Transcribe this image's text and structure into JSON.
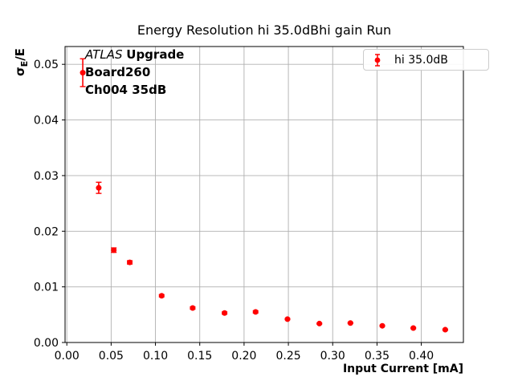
{
  "chart_data": {
    "type": "scatter",
    "title": "Energy Resolution hi 35.0dBhi gain Run",
    "xlabel": "Input Current [mA]",
    "ylabel": "σE/E",
    "ylabel_parts": {
      "sigma": "σ",
      "sub": "E",
      "rest": "/E"
    },
    "xlim": [
      -0.002,
      0.4475
    ],
    "ylim": [
      0,
      0.0532
    ],
    "grid": true,
    "legend": {
      "position": "upper right",
      "entries": [
        {
          "label": "hi 35.0dB",
          "color": "#ff0000",
          "marker": "errorbar-point"
        }
      ]
    },
    "annotation": {
      "experiment": "ATLAS",
      "tag": "Upgrade",
      "board": "Board260",
      "channel": "Ch004 35dB"
    },
    "colors": {
      "marker": "#ff0000",
      "grid": "#b0b0b0",
      "spine": "#000000",
      "legend_border": "#cccccc",
      "text": "#000000"
    },
    "x_ticks": [
      {
        "v": 0.0,
        "label": "0.00"
      },
      {
        "v": 0.05,
        "label": "0.05"
      },
      {
        "v": 0.1,
        "label": "0.10"
      },
      {
        "v": 0.15,
        "label": "0.15"
      },
      {
        "v": 0.2,
        "label": "0.20"
      },
      {
        "v": 0.25,
        "label": "0.25"
      },
      {
        "v": 0.3,
        "label": "0.30"
      },
      {
        "v": 0.35,
        "label": "0.35"
      },
      {
        "v": 0.4,
        "label": "0.40"
      }
    ],
    "y_ticks": [
      {
        "v": 0.0,
        "label": "0.00"
      },
      {
        "v": 0.01,
        "label": "0.01"
      },
      {
        "v": 0.02,
        "label": "0.02"
      },
      {
        "v": 0.03,
        "label": "0.03"
      },
      {
        "v": 0.04,
        "label": "0.04"
      },
      {
        "v": 0.05,
        "label": "0.05"
      }
    ],
    "series": [
      {
        "name": "hi 35.0dB",
        "color": "#ff0000",
        "points": [
          {
            "x": 0.018,
            "y": 0.0485,
            "yerr": 0.0025
          },
          {
            "x": 0.036,
            "y": 0.0278,
            "yerr": 0.001
          },
          {
            "x": 0.053,
            "y": 0.0166,
            "yerr": 0.0004
          },
          {
            "x": 0.071,
            "y": 0.0144,
            "yerr": 0.0003
          },
          {
            "x": 0.107,
            "y": 0.0084,
            "yerr": 0.0002
          },
          {
            "x": 0.142,
            "y": 0.0062,
            "yerr": 0.0002
          },
          {
            "x": 0.178,
            "y": 0.0053,
            "yerr": 0.0002
          },
          {
            "x": 0.213,
            "y": 0.0055,
            "yerr": 0.0002
          },
          {
            "x": 0.249,
            "y": 0.0042,
            "yerr": 0.0001
          },
          {
            "x": 0.285,
            "y": 0.0034,
            "yerr": 0.0001
          },
          {
            "x": 0.32,
            "y": 0.0035,
            "yerr": 0.0001
          },
          {
            "x": 0.356,
            "y": 0.003,
            "yerr": 0.0001
          },
          {
            "x": 0.391,
            "y": 0.0026,
            "yerr": 0.0001
          },
          {
            "x": 0.427,
            "y": 0.0023,
            "yerr": 0.0001
          }
        ]
      }
    ]
  }
}
